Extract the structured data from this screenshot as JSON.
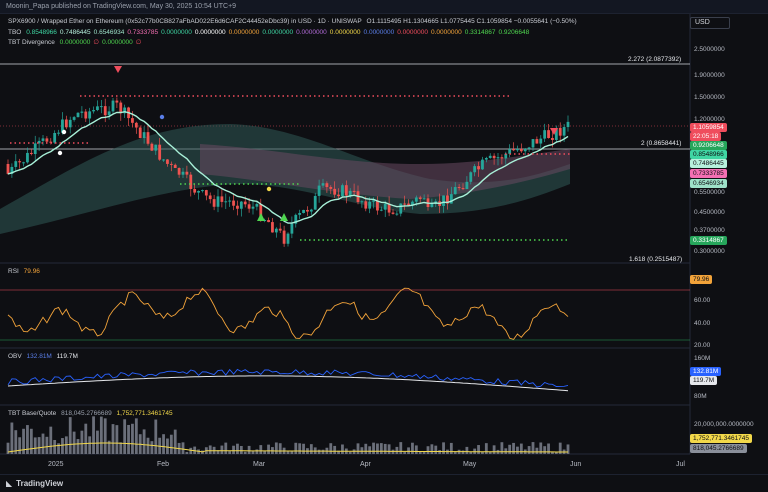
{
  "header": {
    "publisher_line": "Moonin_Papa published on TradingView.com, May 30, 2025 10:54 UTC+9"
  },
  "currency_button": "USD",
  "main_legend": {
    "symbol": "SPX6900 / Wrapped Ether on Ethereum (0x52c77b0CB827aFbAD022E6d6CAF2C44452eDbc39) in USD · 1D · UNISWAP",
    "ohlc": "O1.1115495 H1.1304665 L1.0775445 C1.1059854 −0.0055641 (−0.50%)",
    "tbo_label": "TBO",
    "tbo_values": [
      "0.8548966",
      "0.7486445",
      "0.6546934",
      "0.7333785",
      "0.0000000",
      "0.0000000",
      "0.0000000",
      "0.0000000",
      "0.0000000",
      "0.0000000",
      "0.0000000",
      "0.0000000",
      "0.0000000",
      "0.3314867",
      "0.9206648"
    ],
    "tbo_colors": [
      "#3fd6a3",
      "#b6f0dc",
      "#9ee1c8",
      "#f46fb3",
      "#3fd6a3",
      "#ffffff",
      "#f2a33a",
      "#3fd6a3",
      "#b06ad6",
      "#f2d84a",
      "#5a7ee8",
      "#ef4d5d",
      "#f2a33a",
      "#4fd64f",
      "#4fd64f"
    ],
    "tbt_div_label": "TBT Divergence",
    "tbt_div_values": [
      "0.0000000",
      "∅",
      "0.0000000",
      "∅"
    ]
  },
  "price_axis": {
    "ticks": [
      "2.5000000",
      "1.9000000",
      "1.5000000",
      "1.2000000",
      "0.5500000",
      "0.4500000",
      "0.3700000",
      "0.3000000"
    ],
    "badges": [
      {
        "text": "1.1059854",
        "bg": "#ef4d5d",
        "fg": "#ffffff"
      },
      {
        "text": "22:05:18",
        "bg": "#ef4d5d",
        "fg": "#ffffff"
      },
      {
        "text": "0.9206648",
        "bg": "#26a65b",
        "fg": "#ffffff"
      },
      {
        "text": "0.8548966",
        "bg": "#3fd6a3",
        "fg": "#0e0f13"
      },
      {
        "text": "0.7486445",
        "bg": "#b6f0dc",
        "fg": "#0e0f13"
      },
      {
        "text": "0.7333785",
        "bg": "#f46fb3",
        "fg": "#0e0f13"
      },
      {
        "text": "0.6546934",
        "bg": "#9ee1c8",
        "fg": "#0e0f13"
      },
      {
        "text": "0.3314867",
        "bg": "#26a65b",
        "fg": "#ffffff"
      }
    ]
  },
  "fib_levels": [
    {
      "text": "2.272 (2.0877392)"
    },
    {
      "text": "2 (0.8658441)"
    },
    {
      "text": "1.618 (0.2515487)"
    }
  ],
  "rsi": {
    "label": "RSI",
    "value": "79.96",
    "ticks": [
      "60.00",
      "40.00",
      "20.00"
    ],
    "badge": "79.96"
  },
  "obv": {
    "label": "OBV",
    "v1": "132.81M",
    "v2": "119.7M",
    "ticks": [
      "160M",
      "80M"
    ],
    "badge1": "132.81M",
    "badge2": "119.7M"
  },
  "tbt": {
    "label": "TBT Base/Quote",
    "v1": "818,045.2766689",
    "v2": "1,752,771.3461745",
    "ticks": [
      "20,000,000.0000000"
    ],
    "badge1": "1,752,771.3461745",
    "badge2": "818,045.2766689"
  },
  "time_axis": [
    "2025",
    "Feb",
    "Mar",
    "Apr",
    "May",
    "Jun",
    "Jul"
  ],
  "footer": {
    "brand": "TradingView"
  },
  "colors": {
    "up": "#26a69a",
    "down": "#ef5350",
    "bg": "#0e0f13"
  }
}
